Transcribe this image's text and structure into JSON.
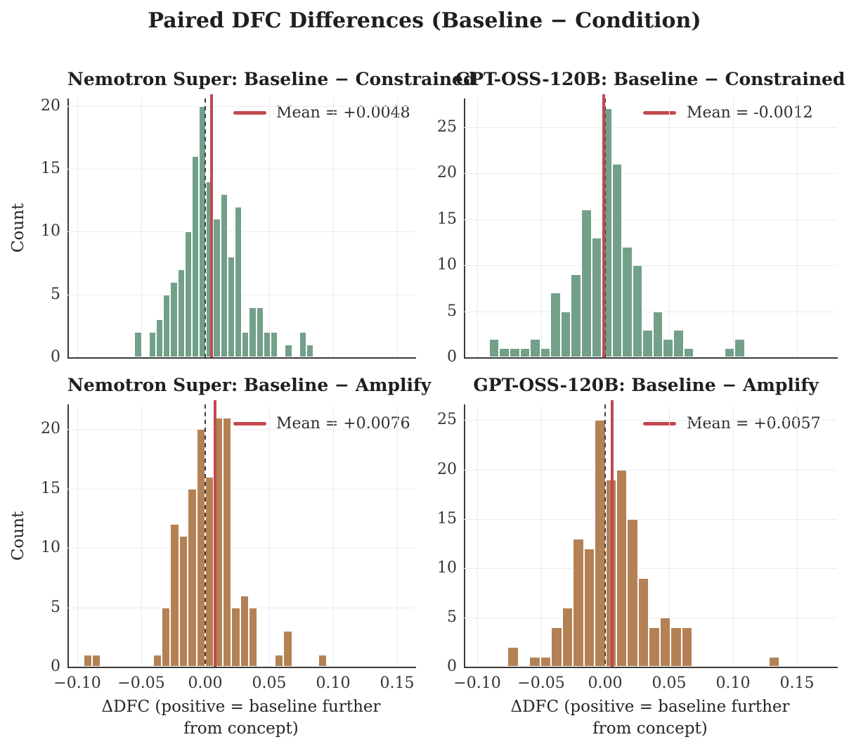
{
  "figure": {
    "title": "Paired DFC Differences (Baseline − Condition)",
    "xlabel": "ΔDFC (positive = baseline further\nfrom concept)",
    "ylabel": "Count",
    "background": "#ffffff",
    "grid": "on",
    "colors": {
      "constrained_bars": "#72A089",
      "amplify_bars": "#B48155",
      "mean_line": "#C4484E",
      "zero_line": "#3f3f3f",
      "axis_spine": "#3a3a3a",
      "gridline": "#ececec"
    }
  },
  "chart_data": [
    {
      "type": "bar",
      "subtype": "histogram",
      "title": "Nemotron Super: Baseline − Constrained",
      "legend_label": "Mean = +0.0048",
      "legend_position": "upper right",
      "mean": 0.0048,
      "zero_reference": 0.0,
      "color": "#72A089",
      "bin_start": -0.0553,
      "bin_width": 0.0056,
      "counts": [
        2,
        0,
        2,
        3,
        5,
        6,
        7,
        10,
        16,
        20,
        14,
        11,
        13,
        8,
        12,
        2,
        4,
        4,
        2,
        2,
        0,
        1,
        0,
        2,
        1
      ],
      "xlim": [
        -0.108,
        0.164
      ],
      "ylim": [
        0,
        20.6
      ],
      "yticks": [
        0,
        5,
        10,
        15,
        20
      ],
      "xtick_values": [
        -0.1,
        -0.05,
        0.0,
        0.05,
        0.1,
        0.15
      ],
      "xtick_labels": [
        "−0.10",
        "−0.05",
        "0.00",
        "0.05",
        "0.10",
        "0.15"
      ],
      "show_xtick_labels": false
    },
    {
      "type": "bar",
      "subtype": "histogram",
      "title": "GPT-OSS-120B: Baseline − Constrained",
      "legend_label": "Mean = -0.0012",
      "legend_position": "upper right",
      "mean": -0.0012,
      "zero_reference": 0.0,
      "color": "#72A089",
      "bin_start": -0.0907,
      "bin_width": 0.008,
      "counts": [
        2,
        1,
        1,
        1,
        2,
        1,
        7,
        5,
        9,
        16,
        13,
        27,
        21,
        12,
        10,
        3,
        5,
        2,
        3,
        1,
        0,
        0,
        0,
        1,
        2
      ],
      "xlim": [
        -0.11,
        0.181
      ],
      "ylim": [
        0,
        28.1
      ],
      "yticks": [
        0,
        5,
        10,
        15,
        20,
        25
      ],
      "xtick_values": [
        -0.1,
        -0.05,
        0.0,
        0.05,
        0.1,
        0.15
      ],
      "xtick_labels": [
        "−0.10",
        "−0.05",
        "0.00",
        "0.05",
        "0.10",
        "0.15"
      ],
      "show_xtick_labels": false
    },
    {
      "type": "bar",
      "subtype": "histogram",
      "title": "Nemotron Super: Baseline − Amplify",
      "legend_label": "Mean = +0.0076",
      "legend_position": "upper right",
      "mean": 0.0076,
      "zero_reference": 0.0,
      "color": "#B48155",
      "bin_start": -0.0952,
      "bin_width": 0.0068,
      "counts": [
        1,
        1,
        0,
        0,
        0,
        0,
        0,
        0,
        1,
        5,
        12,
        11,
        15,
        20,
        16,
        21,
        21,
        5,
        6,
        5,
        0,
        0,
        1,
        3,
        0,
        0,
        0,
        1
      ],
      "xlim": [
        -0.108,
        0.164
      ],
      "ylim": [
        0,
        22.1
      ],
      "yticks": [
        0,
        5,
        10,
        15,
        20
      ],
      "xtick_values": [
        -0.1,
        -0.05,
        0.0,
        0.05,
        0.1,
        0.15
      ],
      "xtick_labels": [
        "−0.10",
        "−0.05",
        "0.00",
        "0.05",
        "0.10",
        "0.15"
      ],
      "show_xtick_labels": true
    },
    {
      "type": "bar",
      "subtype": "histogram",
      "title": "GPT-OSS-120B: Baseline − Amplify",
      "legend_label": "Mean = +0.0057",
      "legend_position": "upper right",
      "mean": 0.0057,
      "zero_reference": 0.0,
      "color": "#B48155",
      "bin_start": -0.0762,
      "bin_width": 0.0085,
      "counts": [
        2,
        0,
        1,
        1,
        4,
        6,
        13,
        12,
        25,
        19,
        20,
        15,
        9,
        4,
        5,
        4,
        4,
        0,
        0,
        0,
        0,
        0,
        0,
        0,
        1
      ],
      "xlim": [
        -0.11,
        0.181
      ],
      "ylim": [
        0,
        26.6
      ],
      "yticks": [
        0,
        5,
        10,
        15,
        20,
        25
      ],
      "xtick_values": [
        -0.1,
        -0.05,
        0.0,
        0.05,
        0.1,
        0.15
      ],
      "xtick_labels": [
        "−0.10",
        "−0.05",
        "0.00",
        "0.05",
        "0.10",
        "0.15"
      ],
      "show_xtick_labels": true
    }
  ]
}
